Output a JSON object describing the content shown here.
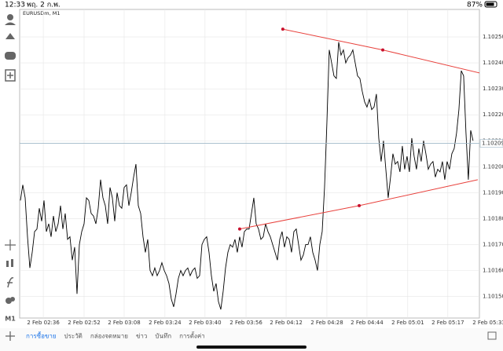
{
  "status_bar": {
    "time": "12:33",
    "date": "พฤ. 2 ก.พ.",
    "battery": "87%"
  },
  "chart_data": {
    "type": "line",
    "title": "EURUSDm, M1",
    "timeframe": "M1",
    "xlim": [
      0,
      198.7
    ],
    "xticks": [
      {
        "value": 9.7,
        "label": "2 Feb 02:36"
      },
      {
        "value": 27,
        "label": "2 Feb 02:52"
      },
      {
        "value": 44,
        "label": "2 Feb 03:08"
      },
      {
        "value": 61.3,
        "label": "2 Feb 03:24"
      },
      {
        "value": 78.3,
        "label": "2 Feb 03:40"
      },
      {
        "value": 95.7,
        "label": "2 Feb 03:56"
      },
      {
        "value": 112.7,
        "label": "2 Feb 04:12"
      },
      {
        "value": 130,
        "label": "2 Feb 04:28"
      },
      {
        "value": 147,
        "label": "2 Feb 04:44"
      },
      {
        "value": 164.3,
        "label": "2 Feb 05:01"
      },
      {
        "value": 181.3,
        "label": "2 Feb 05:17"
      },
      {
        "value": 198.7,
        "label": "2 Feb 05:33"
      }
    ],
    "ylim": [
      1.10142,
      1.1026
    ],
    "yticks": [
      {
        "value": 1.1015,
        "label": "1.10150"
      },
      {
        "value": 1.1016,
        "label": "1.10160"
      },
      {
        "value": 1.1017,
        "label": "1.10170"
      },
      {
        "value": 1.1018,
        "label": "1.10180"
      },
      {
        "value": 1.1019,
        "label": "1.10190"
      },
      {
        "value": 1.102,
        "label": "1.10200"
      },
      {
        "value": 1.1021,
        "label": "1.10210"
      },
      {
        "value": 1.1022,
        "label": "1.10220"
      },
      {
        "value": 1.1023,
        "label": "1.10230"
      },
      {
        "value": 1.1024,
        "label": "1.10240"
      },
      {
        "value": 1.1025,
        "label": "1.10250"
      }
    ],
    "grid": true,
    "last_price": 1.10209,
    "series": [
      {
        "color": "#000000",
        "values": [
          1.10187,
          1.10193,
          1.10188,
          1.10173,
          1.10161,
          1.10167,
          1.10175,
          1.10176,
          1.10184,
          1.10179,
          1.10187,
          1.10175,
          1.10178,
          1.10173,
          1.10181,
          1.10175,
          1.10178,
          1.10185,
          1.10176,
          1.10182,
          1.10172,
          1.10173,
          1.10164,
          1.10169,
          1.10151,
          1.1017,
          1.10175,
          1.10178,
          1.10188,
          1.10187,
          1.10182,
          1.10181,
          1.10178,
          1.10184,
          1.10195,
          1.10188,
          1.10185,
          1.10178,
          1.10192,
          1.10188,
          1.10179,
          1.1019,
          1.10185,
          1.10184,
          1.10192,
          1.10193,
          1.10185,
          1.1019,
          1.10196,
          1.10201,
          1.10185,
          1.10182,
          1.10173,
          1.10167,
          1.10172,
          1.1016,
          1.10158,
          1.10161,
          1.10158,
          1.1016,
          1.10163,
          1.1016,
          1.10158,
          1.10155,
          1.10149,
          1.10146,
          1.10151,
          1.10157,
          1.1016,
          1.10158,
          1.1016,
          1.10161,
          1.10158,
          1.1016,
          1.10161,
          1.10157,
          1.10158,
          1.1017,
          1.10172,
          1.10173,
          1.10167,
          1.10158,
          1.10152,
          1.10155,
          1.10148,
          1.10145,
          1.10152,
          1.10161,
          1.10167,
          1.1017,
          1.10169,
          1.10172,
          1.10167,
          1.10173,
          1.10169,
          1.10175,
          1.10176,
          1.10176,
          1.10182,
          1.10188,
          1.10178,
          1.10176,
          1.10172,
          1.10173,
          1.10178,
          1.10175,
          1.10173,
          1.1017,
          1.10167,
          1.10164,
          1.10172,
          1.10175,
          1.10169,
          1.10173,
          1.10172,
          1.10167,
          1.10175,
          1.10176,
          1.1017,
          1.10164,
          1.10166,
          1.1017,
          1.1017,
          1.10173,
          1.10167,
          1.10164,
          1.1016,
          1.1017,
          1.10175,
          1.10192,
          1.10217,
          1.10245,
          1.1024,
          1.10235,
          1.10234,
          1.10248,
          1.10243,
          1.10245,
          1.1024,
          1.10242,
          1.10243,
          1.10245,
          1.1024,
          1.10235,
          1.10234,
          1.10229,
          1.10225,
          1.10223,
          1.10226,
          1.10222,
          1.10223,
          1.10228,
          1.10211,
          1.10202,
          1.1021,
          1.10199,
          1.10188,
          1.10196,
          1.10205,
          1.10201,
          1.10202,
          1.10198,
          1.10208,
          1.10199,
          1.10204,
          1.10198,
          1.10211,
          1.10204,
          1.10199,
          1.10207,
          1.10202,
          1.1021,
          1.10205,
          1.10199,
          1.10201,
          1.10202,
          1.10196,
          1.10199,
          1.10198,
          1.10202,
          1.10195,
          1.10202,
          1.10199,
          1.10205,
          1.10207,
          1.10213,
          1.10222,
          1.10237,
          1.10235,
          1.10213,
          1.10195,
          1.10214,
          1.1021
        ]
      }
    ],
    "trendlines": [
      {
        "color": "#e8413c",
        "x": [
          111.3,
          153.7,
          195.3
        ],
        "values": [
          1.10253,
          1.10245,
          1.10236
        ]
      },
      {
        "color": "#e8413c",
        "x": [
          93,
          143.7,
          194
        ],
        "values": [
          1.10176,
          1.10185,
          1.10195
        ]
      }
    ]
  },
  "tabs": [
    "การซื้อขาย",
    "ประวัติ",
    "กล่องจดหมาย",
    "ข่าว",
    "บันทึก",
    "การตั้งค่า"
  ]
}
